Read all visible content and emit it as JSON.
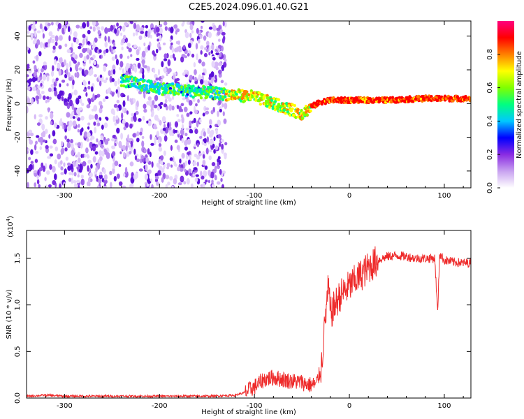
{
  "title": "C2E5.2024.096.01.40.G21",
  "chart_data": [
    {
      "type": "heatmap",
      "xlabel": "Height of straight line (km)",
      "ylabel": "Frequency (Hz)",
      "xlim": [
        -340,
        128
      ],
      "ylim": [
        -50,
        49
      ],
      "x_ticks": [
        -300,
        -200,
        -100,
        0,
        100
      ],
      "y_ticks": [
        -40,
        -20,
        0,
        20,
        40
      ],
      "colorbar": {
        "label": "Normalized spectral amplitude",
        "range": [
          0,
          1
        ],
        "ticks": [
          "0.0",
          "0.2",
          "0.4",
          "0.6",
          "0.8"
        ],
        "tick_values": [
          0,
          0.2,
          0.4,
          0.6,
          0.8
        ],
        "colors": [
          "#ffffff",
          "#c8a2f0",
          "#8a2be2",
          "#0000ff",
          "#00c8ff",
          "#00ff80",
          "#80ff00",
          "#ffff00",
          "#ff8000",
          "#ff0000",
          "#ff0080"
        ]
      },
      "noise_region_x": [
        -340,
        -130
      ],
      "center_track": {
        "x": [
          -240,
          -220,
          -200,
          -180,
          -160,
          -140,
          -120,
          -100,
          -90,
          -80,
          -70,
          -60,
          -50,
          -40,
          -30,
          -20,
          0,
          40,
          80,
          128
        ],
        "y": [
          14,
          11,
          9,
          8,
          7,
          6,
          5,
          4,
          2,
          0,
          -2,
          -4,
          -6,
          -2,
          1,
          2,
          2,
          2,
          3,
          3
        ]
      }
    },
    {
      "type": "line",
      "xlabel": "Height of straight line (km)",
      "ylabel": "SNR (10 * v/v)",
      "y_scale_label": "(x10",
      "y_scale_exp": "4",
      "y_scale_close": ")",
      "xlim": [
        -340,
        128
      ],
      "ylim": [
        0,
        1.8
      ],
      "x_ticks": [
        -300,
        -200,
        -100,
        0,
        100
      ],
      "y_ticks": [
        "0.0",
        "0.5",
        "1.0",
        "1.5"
      ],
      "y_tick_values": [
        0,
        0.5,
        1.0,
        1.5
      ],
      "series": [
        {
          "color": "#ee2a2a",
          "x": [
            -340,
            -320,
            -300,
            -250,
            -200,
            -150,
            -120,
            -110,
            -100,
            -90,
            -80,
            -70,
            -60,
            -50,
            -45,
            -40,
            -35,
            -30,
            -28,
            -25,
            -22,
            -20,
            -15,
            -10,
            -5,
            0,
            10,
            20,
            30,
            40,
            50,
            60,
            70,
            80,
            90,
            93,
            95,
            100,
            110,
            120,
            128
          ],
          "y": [
            0.02,
            0.03,
            0.02,
            0.02,
            0.02,
            0.02,
            0.03,
            0.06,
            0.12,
            0.2,
            0.22,
            0.2,
            0.18,
            0.17,
            0.15,
            0.14,
            0.15,
            0.3,
            0.5,
            0.9,
            1.2,
            0.9,
            1.0,
            1.1,
            1.15,
            1.2,
            1.3,
            1.4,
            1.48,
            1.52,
            1.53,
            1.52,
            1.5,
            1.5,
            1.5,
            0.9,
            1.55,
            1.48,
            1.46,
            1.45,
            1.45
          ]
        }
      ]
    }
  ]
}
